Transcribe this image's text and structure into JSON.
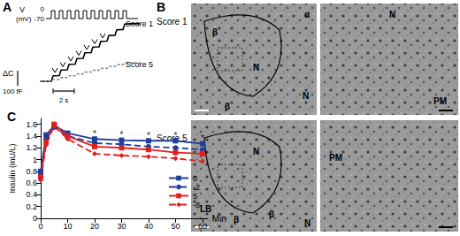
{
  "panel_A": {
    "label": "A",
    "voltage_label": "V",
    "voltage_unit": "(mV)",
    "voltage_levels": [
      0,
      -70
    ],
    "traces": [
      "Score 1",
      "Score 5"
    ],
    "scale_y": [
      "ΔC",
      "100 fF"
    ],
    "scale_x": "2 s"
  },
  "panel_B": {
    "label": "B",
    "rows": [
      {
        "score": "Score 1",
        "left": [
          "β",
          "α",
          "N",
          "N",
          "β"
        ],
        "right": [
          "N",
          "PM"
        ]
      },
      {
        "score": "Score 5",
        "left": [
          "N",
          "LB",
          "β",
          "β",
          "N"
        ],
        "right": [
          "PM"
        ]
      }
    ]
  },
  "chart_data": {
    "type": "line",
    "title": "C",
    "x_label": "Min",
    "y_label": "Insulin (mU/L)",
    "x": [
      0,
      2,
      5,
      10,
      20,
      30,
      40,
      50,
      60
    ],
    "series": [
      {
        "name": "0",
        "color": "#1f3f99",
        "marker": "rect",
        "line_style": "solid",
        "values": [
          0.8,
          1.42,
          1.58,
          1.45,
          1.35,
          1.33,
          1.32,
          1.32,
          1.27
        ]
      },
      {
        "name": "-2",
        "color": "#1f3f99",
        "marker": "circle",
        "line_style": "dashed",
        "values": [
          0.75,
          1.35,
          1.55,
          1.4,
          1.28,
          1.26,
          1.22,
          1.2,
          1.17
        ]
      },
      {
        "name": "5",
        "color": "#e02020",
        "marker": "rect",
        "line_style": "solid",
        "values": [
          0.7,
          1.3,
          1.6,
          1.4,
          1.22,
          1.2,
          1.17,
          1.12,
          1.1
        ]
      },
      {
        "name": "-8",
        "color": "#e02020",
        "marker": "diamond",
        "line_style": "dashed",
        "values": [
          0.65,
          1.25,
          1.57,
          1.35,
          1.1,
          1.07,
          1.05,
          1.02,
          0.97
        ]
      }
    ],
    "annotations": [
      {
        "x": 20,
        "text": "*"
      },
      {
        "x": 30,
        "text": "*"
      },
      {
        "x": 40,
        "text": "*"
      },
      {
        "x": 50,
        "text": "*"
      },
      {
        "x": 60,
        "text": "*"
      }
    ],
    "xlim": [
      0,
      62
    ],
    "xticks": [
      0,
      10,
      20,
      30,
      40,
      50,
      60
    ],
    "ylim": [
      0,
      1.7
    ],
    "yticks": [
      0,
      0.2,
      0.4,
      0.6,
      0.8,
      1,
      1.2,
      1.4,
      1.6
    ],
    "grid": false,
    "legend": "lower right"
  }
}
